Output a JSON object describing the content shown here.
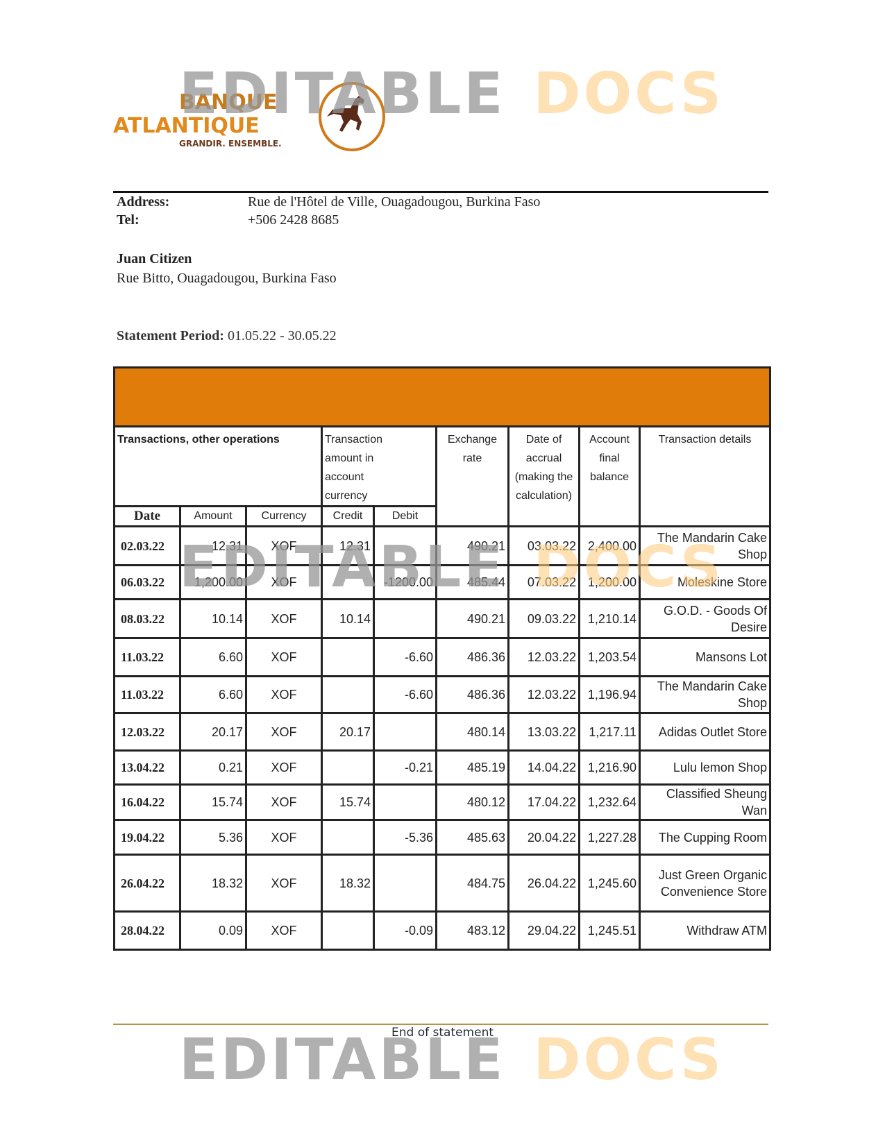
{
  "watermark": {
    "part1": "EDITABLE",
    "part2": "DOCS"
  },
  "logo": {
    "line1": "BANQUE",
    "line2": "ATLANTIQUE",
    "tagline": "GRANDIR. ENSEMBLE.",
    "icon": "horse-icon",
    "colors": {
      "orange": "#e08a1e",
      "brown": "#5a2a18"
    }
  },
  "bank": {
    "address_label": "Address:",
    "address": "Rue de l'Hôtel de Ville, Ouagadougou, Burkina Faso",
    "tel_label": "Tel:",
    "tel": "+506 2428 8685"
  },
  "customer": {
    "name": "Juan Citizen",
    "address": "Rue Bitto, Ouagadougou, Burkina Faso"
  },
  "statement": {
    "period_label": "Statement Period:",
    "period": "01.05.22 - 30.05.22"
  },
  "table": {
    "band_color": "#e07c09",
    "headers": {
      "group": "Transactions, other operations",
      "amount_group": "Transaction amount in account currency",
      "exchange": "Exchange rate",
      "accrual": "Date of accrual (making the calculation)",
      "balance": "Account final balance",
      "details": "Transaction details",
      "date": "Date",
      "amount": "Amount",
      "currency": "Currency",
      "credit": "Credit",
      "debit": "Debit"
    },
    "rows": [
      {
        "date": "02.03.22",
        "amount": "12.31",
        "currency": "XOF",
        "credit": "12.31",
        "debit": "",
        "rate": "490.21",
        "accrual": "03.03.22",
        "balance": "2,400.00",
        "details": "The Mandarin Cake Shop"
      },
      {
        "date": "06.03.22",
        "amount": "1,200.00",
        "currency": "XOF",
        "credit": "",
        "debit": "-1200.00",
        "rate": "485.44",
        "accrual": "07.03.22",
        "balance": "1,200.00",
        "details": "Moleskine Store"
      },
      {
        "date": "08.03.22",
        "amount": "10.14",
        "currency": "XOF",
        "credit": "10.14",
        "debit": "",
        "rate": "490.21",
        "accrual": "09.03.22",
        "balance": "1,210.14",
        "details": "G.O.D. - Goods Of Desire"
      },
      {
        "date": "11.03.22",
        "amount": "6.60",
        "currency": "XOF",
        "credit": "",
        "debit": "-6.60",
        "rate": "486.36",
        "accrual": "12.03.22",
        "balance": "1,203.54",
        "details": "Mansons Lot"
      },
      {
        "date": "11.03.22",
        "amount": "6.60",
        "currency": "XOF",
        "credit": "",
        "debit": "-6.60",
        "rate": "486.36",
        "accrual": "12.03.22",
        "balance": "1,196.94",
        "details": "The Mandarin Cake Shop"
      },
      {
        "date": "12.03.22",
        "amount": "20.17",
        "currency": "XOF",
        "credit": "20.17",
        "debit": "",
        "rate": "480.14",
        "accrual": "13.03.22",
        "balance": "1,217.11",
        "details": "Adidas Outlet Store"
      },
      {
        "date": "13.04.22",
        "amount": "0.21",
        "currency": "XOF",
        "credit": "",
        "debit": "-0.21",
        "rate": "485.19",
        "accrual": "14.04.22",
        "balance": "1,216.90",
        "details": "Lulu lemon Shop"
      },
      {
        "date": "16.04.22",
        "amount": "15.74",
        "currency": "XOF",
        "credit": "15.74",
        "debit": "",
        "rate": "480.12",
        "accrual": "17.04.22",
        "balance": "1,232.64",
        "details": "Classified Sheung Wan"
      },
      {
        "date": "19.04.22",
        "amount": "5.36",
        "currency": "XOF",
        "credit": "",
        "debit": "-5.36",
        "rate": "485.63",
        "accrual": "20.04.22",
        "balance": "1,227.28",
        "details": "The Cupping Room"
      },
      {
        "date": "26.04.22",
        "amount": "18.32",
        "currency": "XOF",
        "credit": "18.32",
        "debit": "",
        "rate": "484.75",
        "accrual": "26.04.22",
        "balance": "1,245.60",
        "details": "Just Green Organic Convenience Store"
      },
      {
        "date": "28.04.22",
        "amount": "0.09",
        "currency": "XOF",
        "credit": "",
        "debit": "-0.09",
        "rate": "483.12",
        "accrual": "29.04.22",
        "balance": "1,245.51",
        "details": "Withdraw ATM"
      }
    ]
  },
  "footer": {
    "text": "End of statement"
  }
}
